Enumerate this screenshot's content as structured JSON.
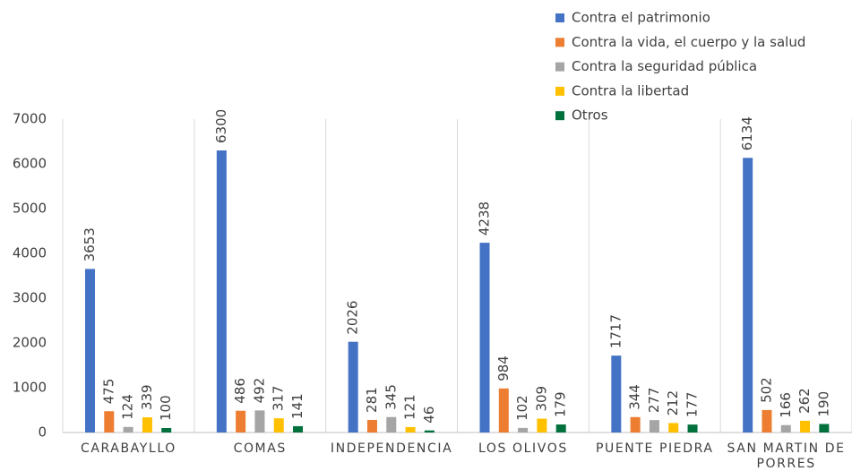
{
  "chart_data": {
    "type": "bar",
    "categories": [
      "CARABAYLLO",
      "COMAS",
      "INDEPENDENCIA",
      "LOS OLIVOS",
      "PUENTE PIEDRA",
      "SAN MARTIN DE PORRES"
    ],
    "series": [
      {
        "name": "Contra el patrimonio",
        "color": "#4472c4",
        "values": [
          3653,
          6300,
          2026,
          4238,
          1717,
          6134
        ]
      },
      {
        "name": "Contra la vida, el cuerpo y la salud",
        "color": "#ed7d31",
        "values": [
          475,
          486,
          281,
          984,
          344,
          502
        ]
      },
      {
        "name": "Contra la seguridad pública",
        "color": "#a5a5a5",
        "values": [
          124,
          492,
          345,
          102,
          277,
          166
        ]
      },
      {
        "name": "Contra la libertad",
        "color": "#ffc000",
        "values": [
          339,
          317,
          121,
          309,
          212,
          262
        ]
      },
      {
        "name": "Otros",
        "color": "#00703c",
        "values": [
          100,
          141,
          46,
          179,
          177,
          190
        ]
      }
    ],
    "ylim": [
      0,
      7000
    ],
    "yticks": [
      0,
      1000,
      2000,
      3000,
      4000,
      5000,
      6000,
      7000
    ],
    "grid": false,
    "legend": "top-right"
  }
}
